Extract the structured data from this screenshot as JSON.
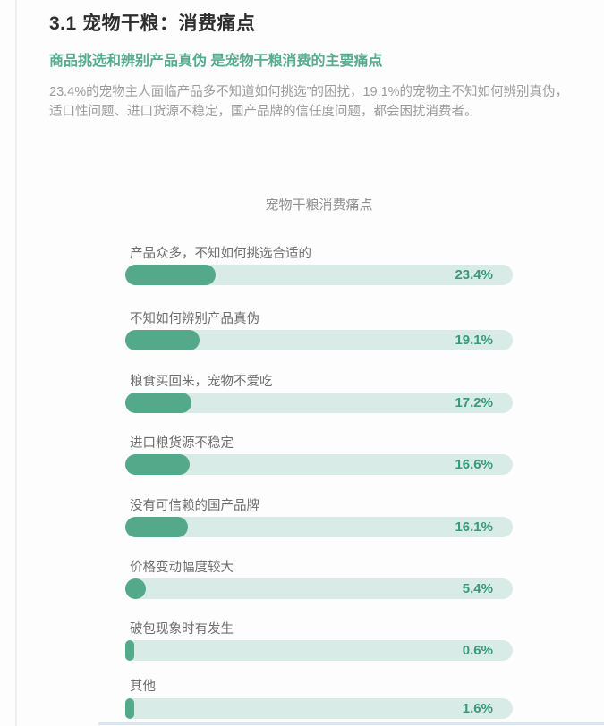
{
  "page": {
    "title": "3.1 宠物干粮：消费痛点",
    "subtitle": "商品挑选和辨别产品真伪 是宠物干粮消费的主要痛点",
    "body_lines": [
      "23.4%的宠物主人面临产品多不知道如何挑选”的困扰，19.1%的宠物主不知如何辨别真伪，",
      "适口性问题、进口货源不稳定，国产品牌的信任度问题，都会困扰消费者。"
    ]
  },
  "chart_data": {
    "type": "bar",
    "orientation": "horizontal",
    "title": "宠物干粮消费痛点",
    "categories": [
      "产品众多，不知如何挑选合适的",
      "不知如何辨别产品真伪",
      "粮食买回来，宠物不爱吃",
      "进口粮货源不稳定",
      "没有可信赖的国产品牌",
      "价格变动幅度较大",
      "破包现象时有发生",
      "其他"
    ],
    "values": [
      23.4,
      19.1,
      17.2,
      16.6,
      16.1,
      5.4,
      0.6,
      1.6
    ],
    "value_labels": [
      "23.4%",
      "19.1%",
      "17.2%",
      "16.6%",
      "16.1%",
      "5.4%",
      "0.6%",
      "1.6%"
    ],
    "xlim": [
      0,
      100
    ],
    "grid": false,
    "legend": "none",
    "colors": {
      "bar_fill": "#54a98b",
      "bar_track": "#d8ebe6",
      "value_text": "#38997b",
      "subtitle_text": "#57ab8e"
    }
  }
}
